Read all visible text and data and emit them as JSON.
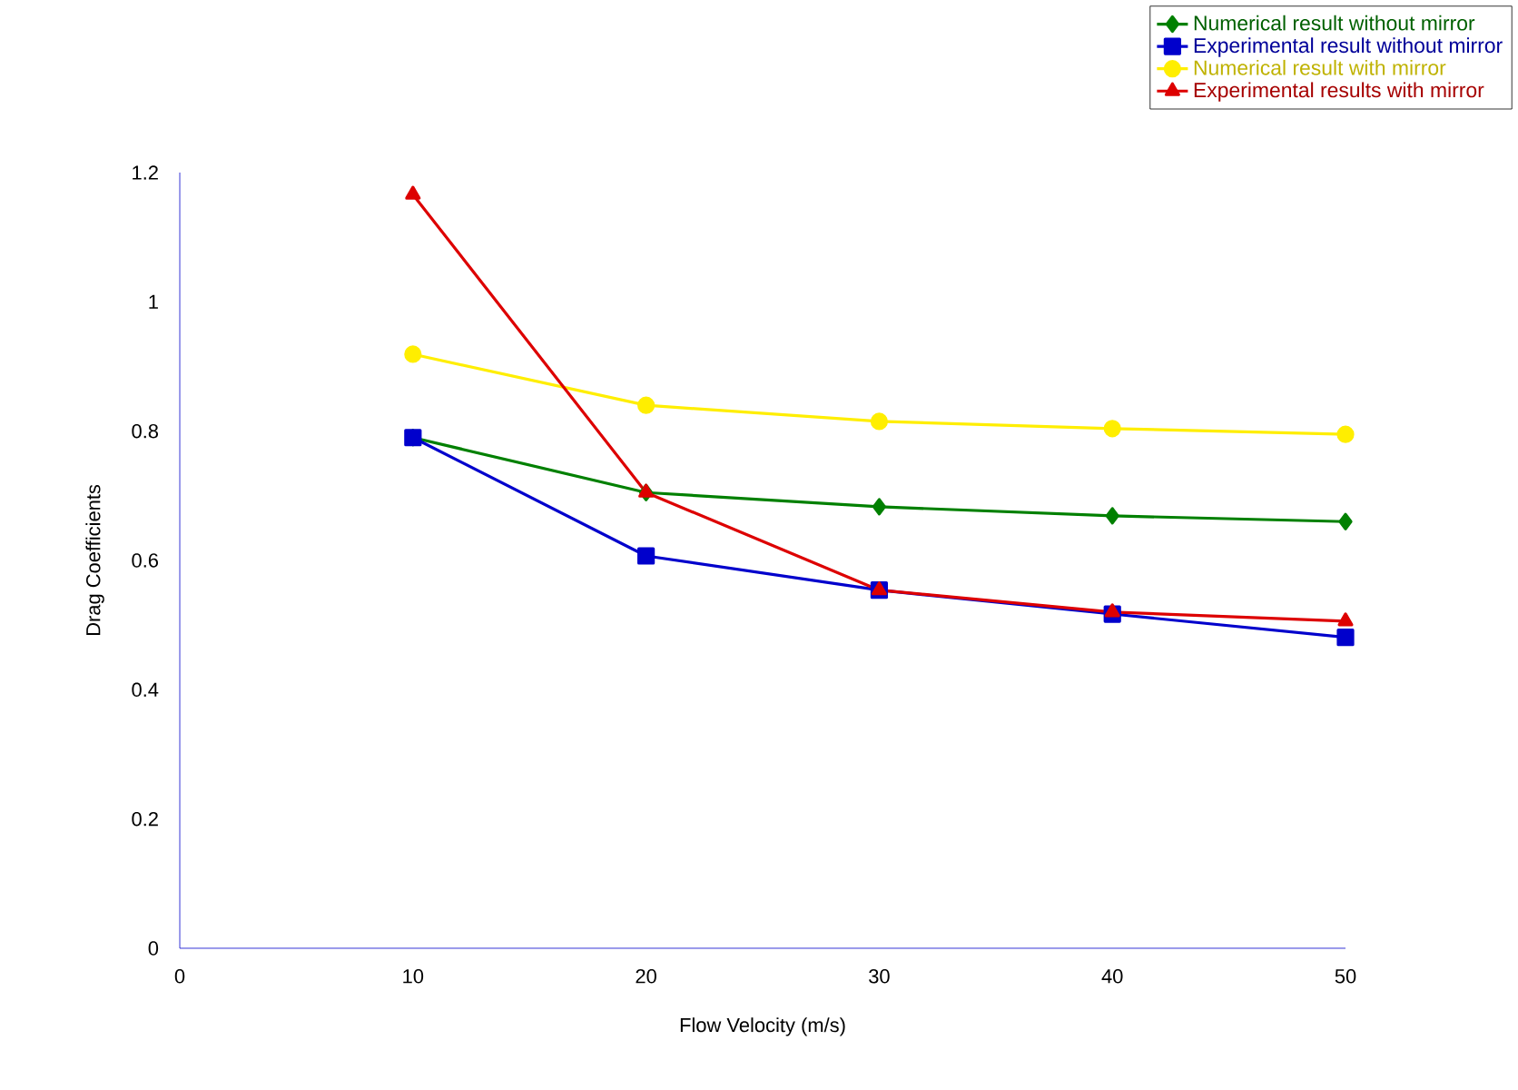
{
  "chart_data": {
    "type": "line",
    "xlabel": "Flow Velocity (m/s)",
    "ylabel": "Drag Coefficients",
    "x": [
      10,
      20,
      30,
      40,
      50
    ],
    "series": [
      {
        "name": "Numerical result without mirror",
        "color": "#008000",
        "marker": "diamond",
        "values": [
          0.79,
          0.705,
          0.683,
          0.669,
          0.66
        ]
      },
      {
        "name": "Experimental result without mirror",
        "color": "#0000cc",
        "marker": "square",
        "values": [
          0.79,
          0.607,
          0.554,
          0.517,
          0.481
        ]
      },
      {
        "name": "Numerical result with mirror",
        "color": "#ffee00",
        "marker": "circle",
        "values": [
          0.919,
          0.84,
          0.815,
          0.804,
          0.795
        ]
      },
      {
        "name": "Experimental results with mirror",
        "color": "#dd0000",
        "marker": "triangle",
        "values": [
          1.166,
          0.705,
          0.554,
          0.52,
          0.506
        ]
      }
    ],
    "xlim": [
      0,
      50
    ],
    "xticks": [
      0,
      10,
      20,
      30,
      40,
      50
    ],
    "ylim": [
      0,
      1.2
    ],
    "yticks": [
      0,
      0.2,
      0.4,
      0.6,
      0.8,
      1,
      1.2
    ],
    "grid": false,
    "legend": "top right"
  }
}
